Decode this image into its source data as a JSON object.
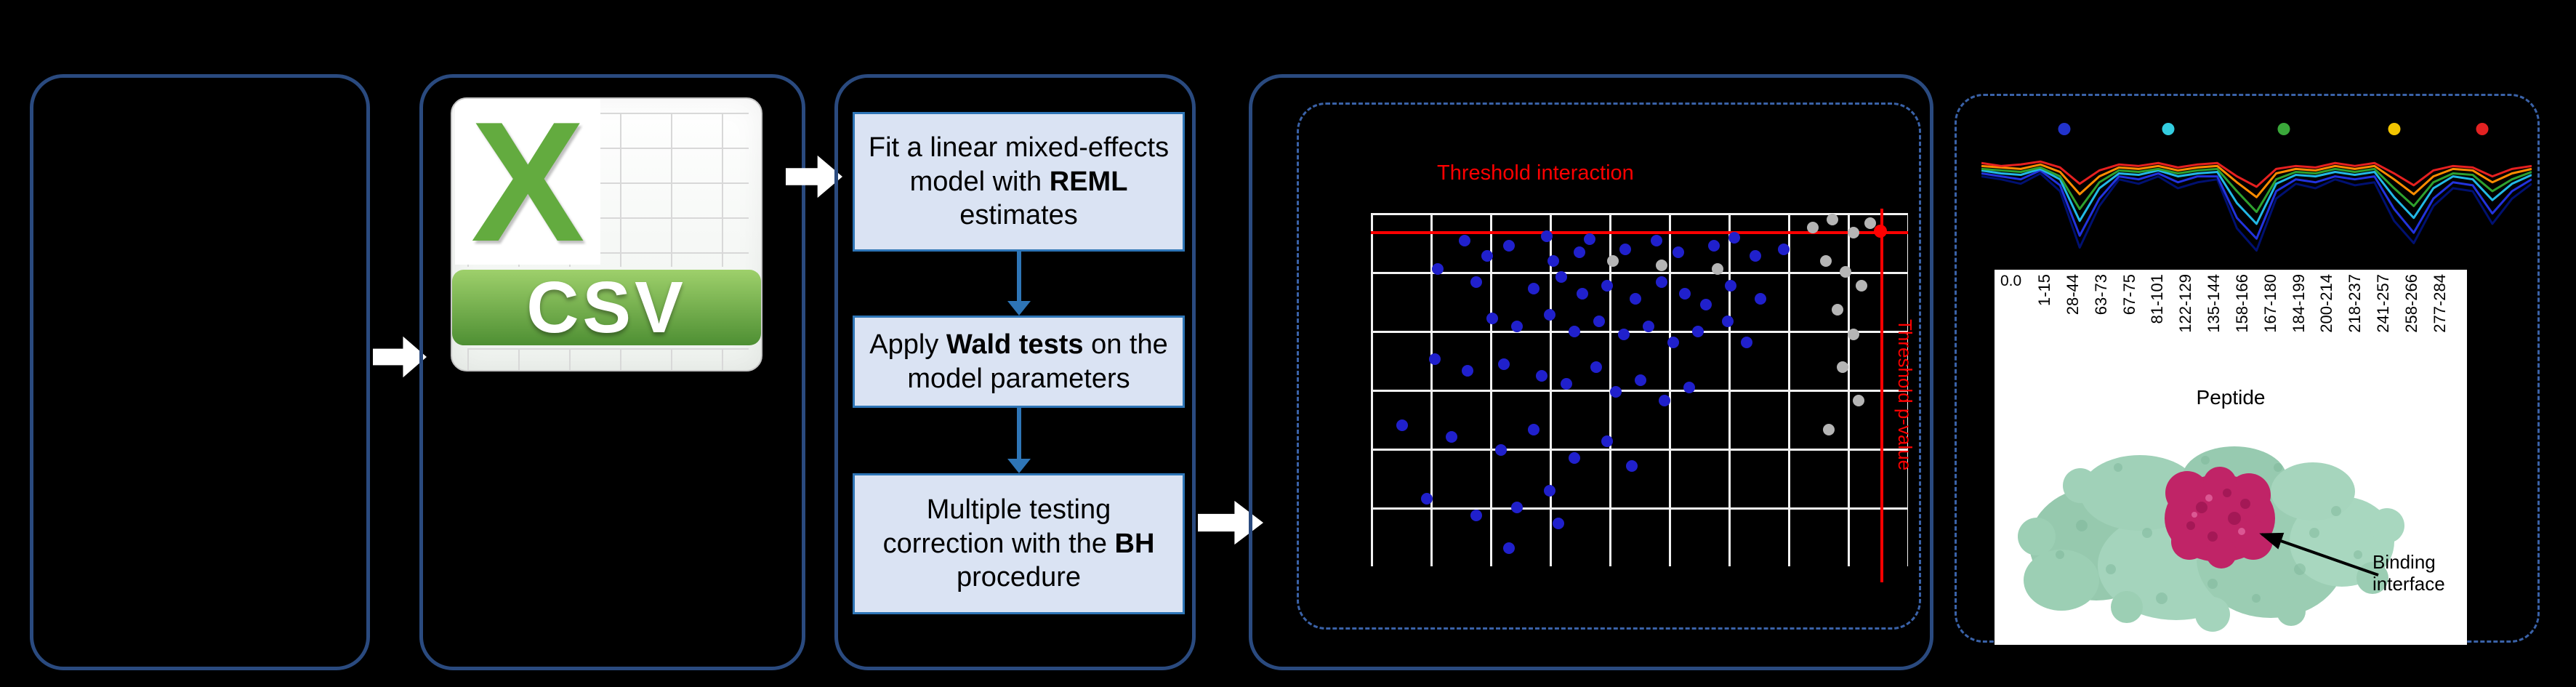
{
  "colors": {
    "page_bg": "#000000",
    "panel_border": "#2a4a7f",
    "dashed_border": "#3a62a8",
    "step_fill": "#dae3f3",
    "step_border": "#2e75b6",
    "flow_arrow": "#ffffff",
    "step_arrow": "#2e75b6",
    "threshold_red": "#ff0000",
    "dot_blue": "#2020cc",
    "dot_gray": "#b5b5b5",
    "dot_red": "#ff0000",
    "csv_green": "#63ab3f",
    "protein_green": "#9ccfb4",
    "protein_magenta": "#c02467"
  },
  "csv": {
    "x_glyph": "X",
    "label": "CSV"
  },
  "steps": [
    {
      "pre": "Fit a linear mixed-effects model with ",
      "bold": "REML",
      "post": " estimates"
    },
    {
      "pre": "Apply ",
      "bold": "Wald tests",
      "post": " on the model parameters"
    },
    {
      "pre": "Multiple testing correction with the ",
      "bold": "BH",
      "post": " procedure"
    }
  ],
  "volcano": {
    "top_threshold_label": "Threshold interaction",
    "right_threshold_label": "Threshold p-value",
    "thresholds": {
      "h_y": 5.1,
      "v_x": 94.8
    },
    "points": {
      "blue": [
        [
          17.4,
          7.9
        ],
        [
          21.7,
          12.1
        ],
        [
          25.7,
          9.3
        ],
        [
          32.7,
          6.5
        ],
        [
          33.9,
          13.5
        ],
        [
          38.8,
          11.2
        ],
        [
          40.7,
          7.4
        ],
        [
          47.4,
          10.2
        ],
        [
          53.2,
          7.9
        ],
        [
          57.2,
          11.2
        ],
        [
          63.9,
          9.3
        ],
        [
          67.6,
          7.0
        ],
        [
          71.6,
          12.1
        ],
        [
          76.8,
          10.2
        ],
        [
          12.5,
          15.8
        ],
        [
          19.6,
          19.5
        ],
        [
          30.3,
          21.4
        ],
        [
          35.5,
          18.1
        ],
        [
          39.4,
          22.8
        ],
        [
          44.0,
          20.5
        ],
        [
          49.2,
          24.2
        ],
        [
          54.1,
          19.5
        ],
        [
          58.4,
          22.8
        ],
        [
          62.4,
          26.0
        ],
        [
          67.0,
          20.5
        ],
        [
          72.5,
          24.2
        ],
        [
          22.6,
          29.8
        ],
        [
          27.2,
          32.1
        ],
        [
          33.3,
          28.8
        ],
        [
          37.9,
          33.5
        ],
        [
          42.5,
          30.7
        ],
        [
          47.1,
          34.4
        ],
        [
          51.7,
          32.1
        ],
        [
          56.3,
          36.7
        ],
        [
          60.9,
          33.5
        ],
        [
          66.4,
          30.7
        ],
        [
          70.0,
          36.7
        ],
        [
          11.9,
          41.4
        ],
        [
          18.0,
          44.7
        ],
        [
          24.8,
          42.8
        ],
        [
          31.8,
          46.0
        ],
        [
          36.4,
          48.4
        ],
        [
          41.9,
          43.7
        ],
        [
          45.6,
          50.7
        ],
        [
          50.2,
          47.4
        ],
        [
          54.7,
          53.0
        ],
        [
          59.3,
          49.3
        ],
        [
          5.8,
          60.0
        ],
        [
          15.0,
          63.3
        ],
        [
          24.2,
          67.0
        ],
        [
          30.3,
          61.4
        ],
        [
          37.9,
          69.3
        ],
        [
          44.0,
          64.7
        ],
        [
          48.6,
          71.6
        ],
        [
          10.4,
          80.9
        ],
        [
          19.6,
          85.6
        ],
        [
          27.2,
          83.3
        ],
        [
          34.9,
          87.9
        ],
        [
          25.7,
          94.9
        ],
        [
          33.3,
          78.6
        ]
      ],
      "gray": [
        [
          82.3,
          4.2
        ],
        [
          85.9,
          1.9
        ],
        [
          89.9,
          5.6
        ],
        [
          93.0,
          2.8
        ],
        [
          84.7,
          13.5
        ],
        [
          88.4,
          16.7
        ],
        [
          91.4,
          20.5
        ],
        [
          86.9,
          27.4
        ],
        [
          89.9,
          34.4
        ],
        [
          87.8,
          43.7
        ],
        [
          90.8,
          53.0
        ],
        [
          85.3,
          61.4
        ],
        [
          54.1,
          14.9
        ],
        [
          64.5,
          15.8
        ],
        [
          45.0,
          13.5
        ]
      ],
      "red": [
        [
          94.8,
          5.1
        ]
      ]
    }
  },
  "profile": {
    "legend_dots": [
      {
        "x": 15,
        "color": "#2233cc"
      },
      {
        "x": 34,
        "color": "#33cde0"
      },
      {
        "x": 55,
        "color": "#3aa83a"
      },
      {
        "x": 75,
        "color": "#f2c500"
      },
      {
        "x": 91,
        "color": "#e32222"
      }
    ],
    "series": [
      {
        "name": "navy",
        "color": "#001070",
        "values": [
          40,
          42,
          45,
          38,
          50,
          88,
          60,
          42,
          45,
          40,
          48,
          44,
          42,
          75,
          90,
          55,
          45,
          48,
          42,
          46,
          44,
          70,
          85,
          60,
          48,
          50,
          72,
          55,
          45
        ]
      },
      {
        "name": "blue",
        "color": "#2233dd",
        "values": [
          38,
          40,
          42,
          36,
          46,
          80,
          55,
          40,
          42,
          38,
          44,
          40,
          40,
          68,
          82,
          50,
          42,
          44,
          40,
          42,
          40,
          62,
          78,
          55,
          44,
          46,
          65,
          50,
          42
        ]
      },
      {
        "name": "cyan",
        "color": "#22b8e6",
        "values": [
          36,
          38,
          39,
          35,
          42,
          70,
          48,
          38,
          39,
          36,
          40,
          38,
          37,
          58,
          72,
          45,
          39,
          40,
          37,
          39,
          37,
          54,
          68,
          48,
          40,
          42,
          56,
          45,
          39
        ]
      },
      {
        "name": "green",
        "color": "#2ea02e",
        "values": [
          35,
          36,
          37,
          34,
          40,
          62,
          44,
          36,
          37,
          35,
          38,
          36,
          35,
          50,
          64,
          42,
          37,
          38,
          35,
          37,
          35,
          48,
          60,
          44,
          38,
          39,
          50,
          42,
          37
        ]
      },
      {
        "name": "orange",
        "color": "#ff8c00",
        "values": [
          33,
          34,
          35,
          32,
          37,
          52,
          40,
          34,
          35,
          33,
          36,
          34,
          33,
          44,
          54,
          38,
          35,
          36,
          33,
          35,
          33,
          42,
          52,
          40,
          35,
          36,
          44,
          38,
          35
        ]
      },
      {
        "name": "red",
        "color": "#e62020",
        "values": [
          31,
          33,
          32,
          30,
          34,
          45,
          36,
          32,
          33,
          31,
          34,
          32,
          31,
          40,
          47,
          35,
          33,
          34,
          31,
          33,
          31,
          38,
          46,
          36,
          33,
          34,
          40,
          35,
          33
        ]
      }
    ]
  },
  "peptide_axis": {
    "y_tick": "0.0",
    "labels": [
      "1-15",
      "28-44",
      "63-73",
      "67-75",
      "81-101",
      "122-129",
      "135-144",
      "158-166",
      "167-180",
      "184-199",
      "200-214",
      "218-237",
      "241-257",
      "258-266",
      "277-284"
    ],
    "title": "Peptide"
  },
  "protein": {
    "annotation_line1": "Binding",
    "annotation_line2": "interface"
  }
}
